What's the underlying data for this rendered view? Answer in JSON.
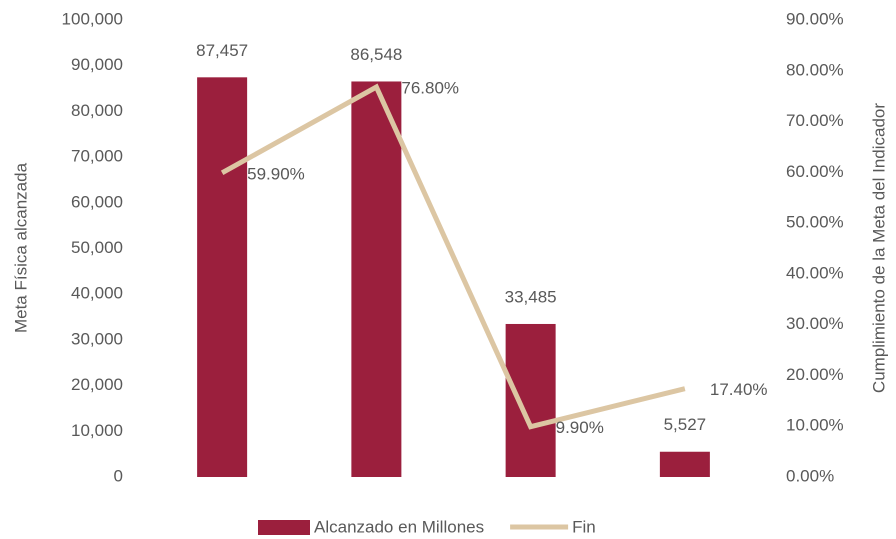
{
  "chart_data": {
    "type": "bar",
    "categories": [
      null,
      null,
      null,
      null
    ],
    "series": [
      {
        "name": "Alcanzado en Millones",
        "type": "bar",
        "color": "#9b1f3d",
        "values": [
          87457,
          86548,
          33485,
          5527
        ],
        "value_labels": [
          "87,457",
          "86,548",
          "33,485",
          "5,527"
        ]
      },
      {
        "name": "Fin",
        "type": "line",
        "axis": "y2",
        "color": "#dcc6a3",
        "values": [
          59.9,
          76.8,
          9.9,
          17.4
        ],
        "value_labels": [
          "59.90%",
          "76.80%",
          "9.90%",
          "17.40%"
        ]
      }
    ],
    "ylabel": "Meta Física alcanzada",
    "y2label": "Cumplimiento de la Meta del Indicador",
    "ylim": [
      0,
      100000
    ],
    "yticks": [
      0,
      {
        "value": 10000,
        "label": "10,000"
      },
      {
        "value": 20000,
        "label": "20,000"
      },
      {
        "value": 30000,
        "label": "30,000"
      },
      {
        "value": 40000,
        "label": "40,000"
      },
      {
        "value": 50000,
        "label": "50,000"
      },
      {
        "value": 60000,
        "label": "60,000"
      },
      {
        "value": 70000,
        "label": "70,000"
      },
      {
        "value": 80000,
        "label": "80,000"
      },
      {
        "value": 90000,
        "label": "90,000"
      },
      {
        "value": 100000,
        "label": "100,000"
      }
    ],
    "y2lim": [
      0,
      90
    ],
    "y2ticks": [
      {
        "value": 0,
        "label": "0.00%"
      },
      {
        "value": 10,
        "label": "10.00%"
      },
      {
        "value": 20,
        "label": "20.00%"
      },
      {
        "value": 30,
        "label": "30.00%"
      },
      {
        "value": 40,
        "label": "40.00%"
      },
      {
        "value": 50,
        "label": "50.00%"
      },
      {
        "value": 60,
        "label": "60.00%"
      },
      {
        "value": 70,
        "label": "70.00%"
      },
      {
        "value": 80,
        "label": "80.00%"
      },
      {
        "value": 90,
        "label": "90.00%"
      }
    ],
    "legend": "bottom",
    "grid": false
  }
}
